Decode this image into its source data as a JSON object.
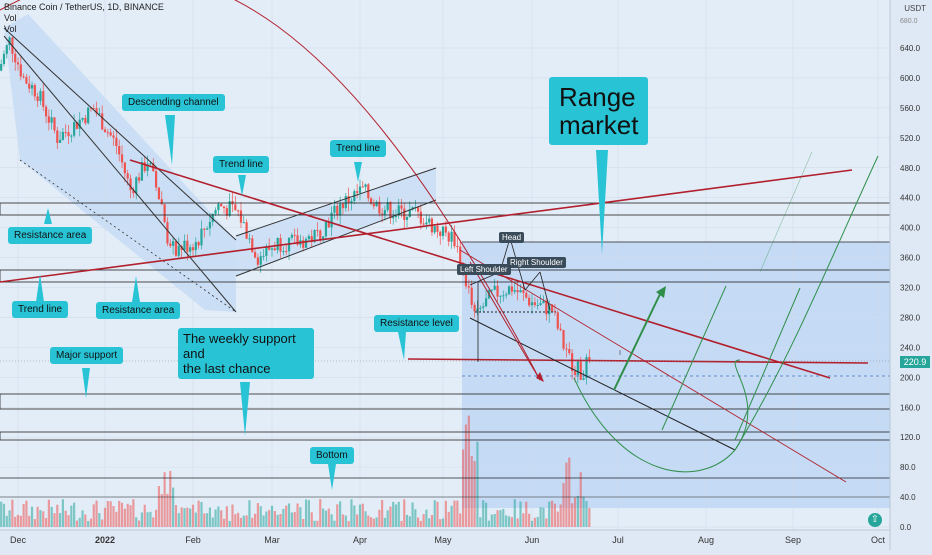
{
  "header": {
    "symbol_line": "Binance Coin / TetherUS, 1D, BINANCE",
    "vol1": "Vol",
    "vol2": "Vol"
  },
  "axis": {
    "currency": "USDT",
    "current_price": "220.9"
  },
  "annotations": {
    "descending_channel": "Descending channel",
    "trend_line_top": "Trend line",
    "trend_line_right": "Trend line",
    "range_market": "Range\nmarket",
    "resistance_area_left": "Resistance area",
    "trend_line_bottom": "Trend line",
    "resistance_area_bottom": "Resistance area",
    "resistance_level": "Resistance level",
    "weekly_support": "The weekly support\nand\nthe last chance",
    "major_support": "Major support",
    "bottom": "Bottom",
    "head": "Head",
    "left_shoulder": "Left Shoulder",
    "right_shoulder": "Right Shoulder"
  },
  "colors": {
    "up": "#26a69a",
    "down": "#ef5350",
    "trendline": "#b2202d",
    "badge": "#28c4d6",
    "channel_fill": "#c6dbf4",
    "range_fill": "#b9d3f4"
  },
  "chart_data": {
    "type": "candlestick",
    "title": "Binance Coin / TetherUS, 1D, BINANCE",
    "xlabel": "",
    "ylabel": "USDT",
    "x_ticks": [
      "Dec",
      "2022",
      "Feb",
      "Mar",
      "Apr",
      "May",
      "Jun",
      "Jul",
      "Aug",
      "Sep",
      "Oct"
    ],
    "y_ticks": [
      0.0,
      40.0,
      80.0,
      120.0,
      160.0,
      200.0,
      240.0,
      280.0,
      320.0,
      360.0,
      400.0,
      440.0,
      480.0,
      520.0,
      560.0,
      600.0,
      640.0
    ],
    "y_top_partial_label": "680.0",
    "ylim": [
      0,
      690
    ],
    "current_price": 220.9,
    "price_path": [
      {
        "date": "2021-11-24",
        "price": 610
      },
      {
        "date": "2021-11-28",
        "price": 650
      },
      {
        "date": "2021-12-03",
        "price": 600
      },
      {
        "date": "2021-12-08",
        "price": 580
      },
      {
        "date": "2021-12-15",
        "price": 520
      },
      {
        "date": "2021-12-22",
        "price": 540
      },
      {
        "date": "2021-12-28",
        "price": 560
      },
      {
        "date": "2022-01-05",
        "price": 510
      },
      {
        "date": "2022-01-10",
        "price": 450
      },
      {
        "date": "2022-01-16",
        "price": 490
      },
      {
        "date": "2022-01-21",
        "price": 430
      },
      {
        "date": "2022-01-24",
        "price": 370
      },
      {
        "date": "2022-02-02",
        "price": 380
      },
      {
        "date": "2022-02-10",
        "price": 430
      },
      {
        "date": "2022-02-17",
        "price": 420
      },
      {
        "date": "2022-02-24",
        "price": 360
      },
      {
        "date": "2022-03-03",
        "price": 380
      },
      {
        "date": "2022-03-10",
        "price": 380
      },
      {
        "date": "2022-03-17",
        "price": 390
      },
      {
        "date": "2022-03-25",
        "price": 430
      },
      {
        "date": "2022-04-02",
        "price": 450
      },
      {
        "date": "2022-04-07",
        "price": 430
      },
      {
        "date": "2022-04-14",
        "price": 420
      },
      {
        "date": "2022-04-21",
        "price": 420
      },
      {
        "date": "2022-04-28",
        "price": 400
      },
      {
        "date": "2022-05-05",
        "price": 385
      },
      {
        "date": "2022-05-09",
        "price": 330
      },
      {
        "date": "2022-05-12",
        "price": 280
      },
      {
        "date": "2022-05-18",
        "price": 310
      },
      {
        "date": "2022-05-25",
        "price": 320
      },
      {
        "date": "2022-06-01",
        "price": 300
      },
      {
        "date": "2022-06-08",
        "price": 290
      },
      {
        "date": "2022-06-13",
        "price": 230
      },
      {
        "date": "2022-06-18",
        "price": 205
      },
      {
        "date": "2022-06-21",
        "price": 220.9
      }
    ],
    "horizontal_levels": [
      {
        "name": "resistance area upper",
        "low": 420,
        "high": 435
      },
      {
        "name": "neckline zone",
        "low": 330,
        "high": 345
      },
      {
        "name": "resistance level",
        "value": 220
      },
      {
        "name": "major support",
        "low": 160,
        "high": 175
      },
      {
        "name": "weekly support",
        "low": 120,
        "high": 127
      },
      {
        "name": "bottom",
        "value": 65
      }
    ]
  }
}
